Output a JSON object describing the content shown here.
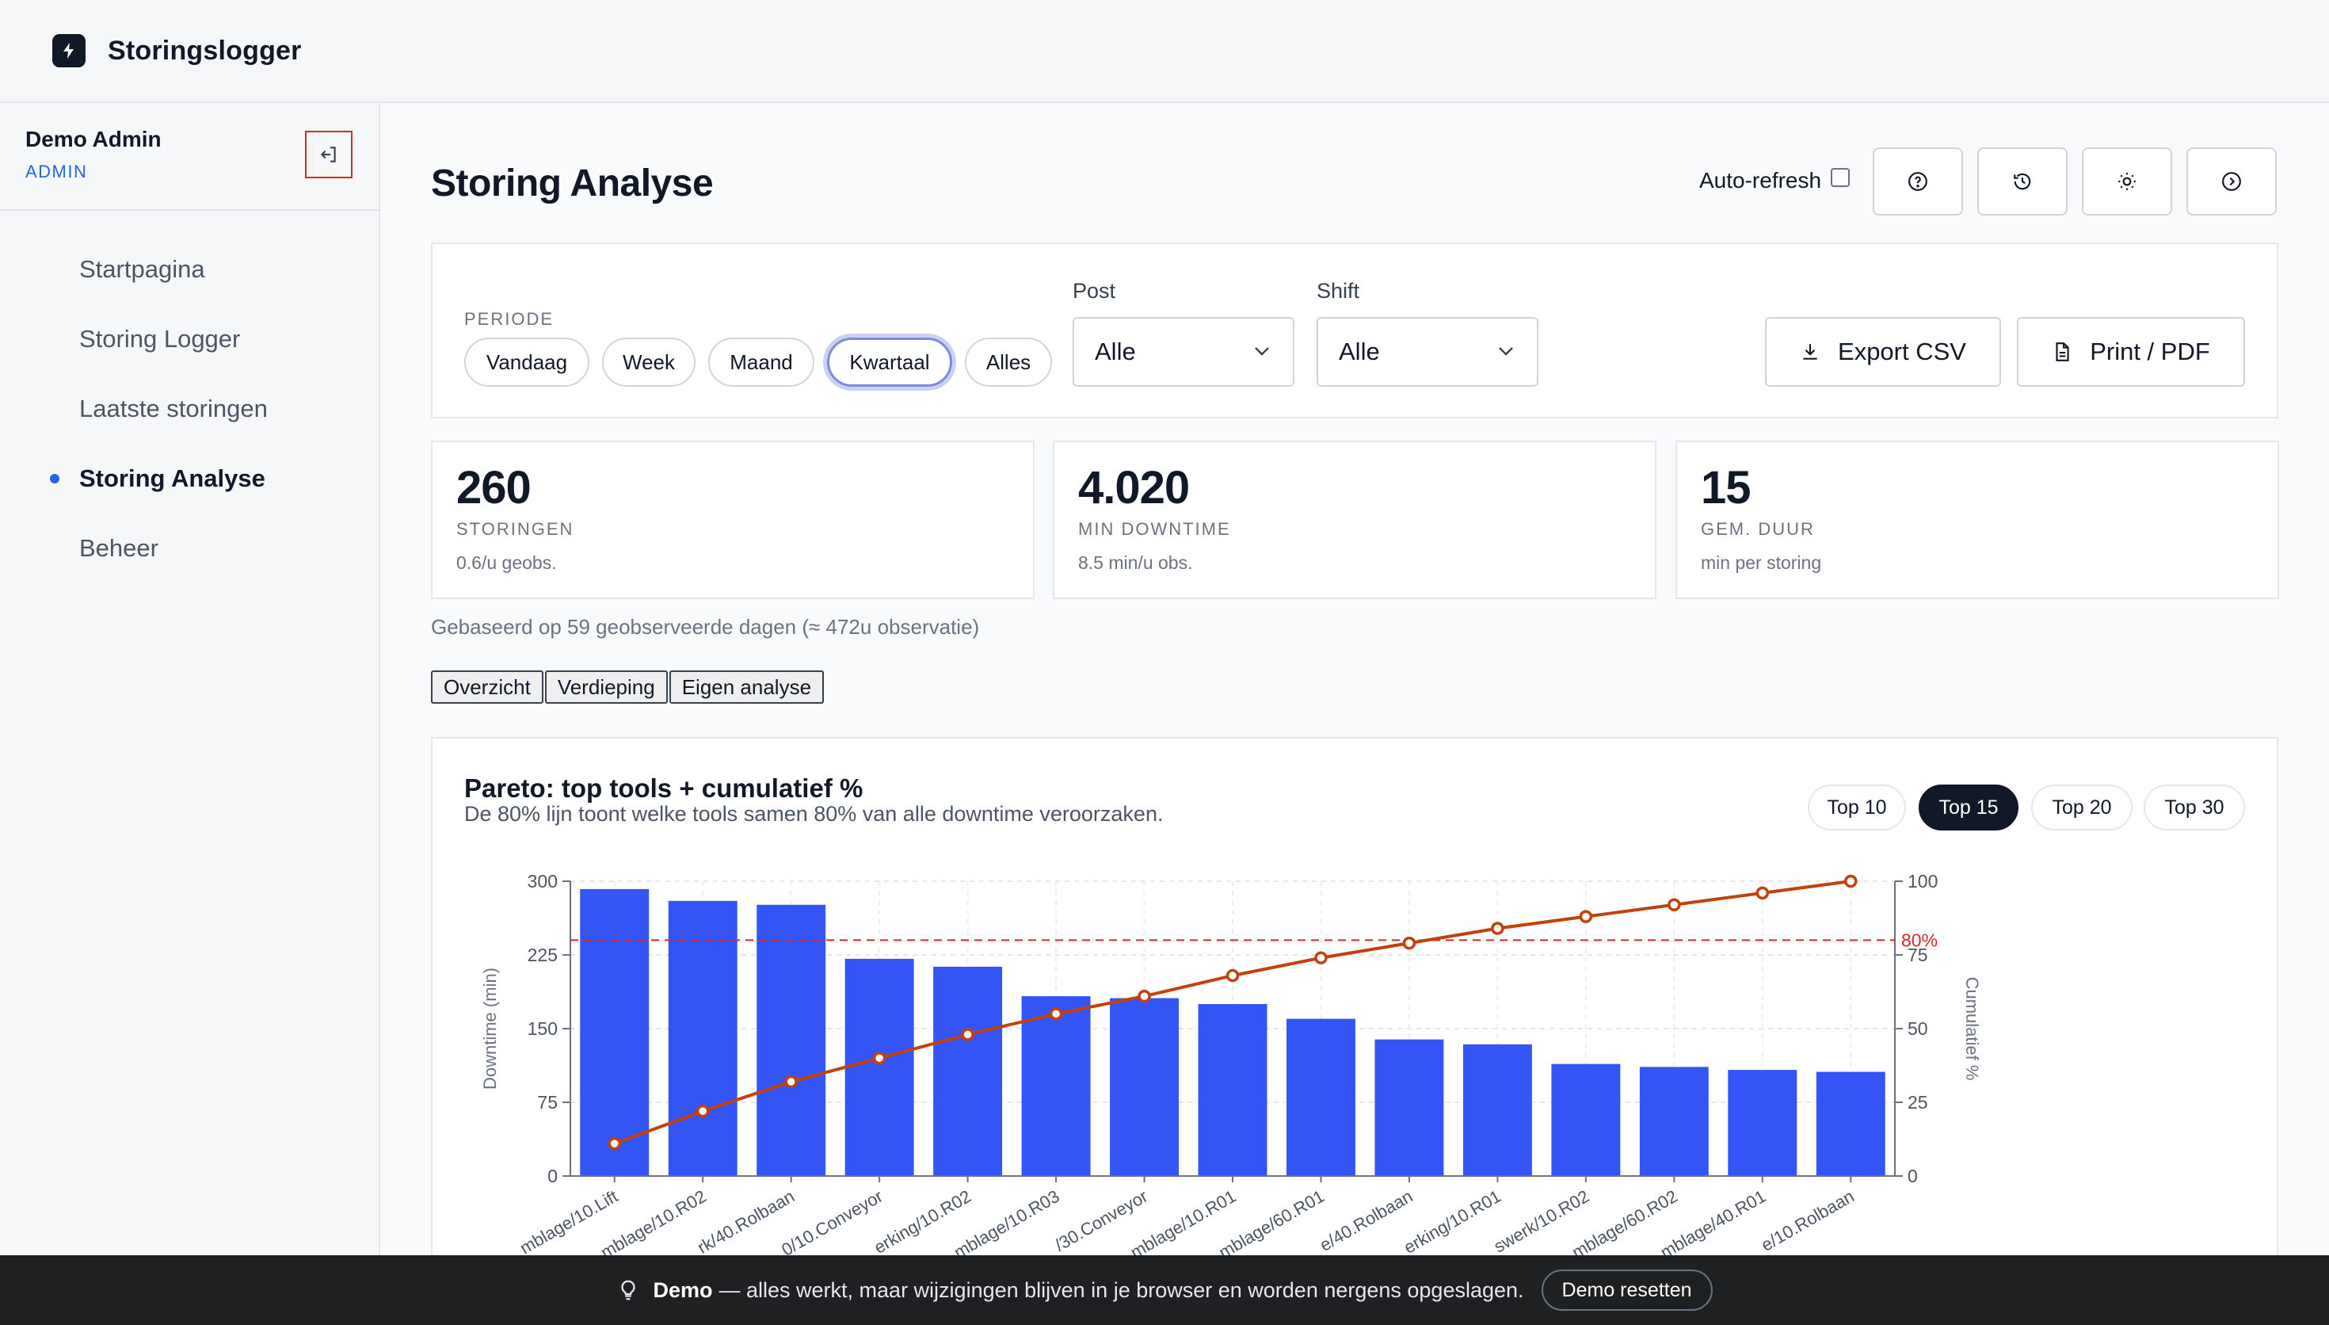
{
  "app": {
    "title": "Storingslogger"
  },
  "user": {
    "name": "Demo Admin",
    "role": "ADMIN"
  },
  "nav": [
    {
      "label": "Startpagina",
      "active": false
    },
    {
      "label": "Storing Logger",
      "active": false
    },
    {
      "label": "Laatste storingen",
      "active": false
    },
    {
      "label": "Storing Analyse",
      "active": true
    },
    {
      "label": "Beheer",
      "active": false
    }
  ],
  "page": {
    "title": "Storing Analyse",
    "autorefresh_label": "Auto-refresh",
    "autorefresh_checked": false
  },
  "header_icons": [
    "help-icon",
    "history-icon",
    "theme-sun-icon",
    "next-icon"
  ],
  "filters": {
    "periode_label": "PERIODE",
    "periods": [
      "Vandaag",
      "Week",
      "Maand",
      "Kwartaal",
      "Alles"
    ],
    "selected_period": "Kwartaal",
    "post": {
      "label": "Post",
      "value": "Alle"
    },
    "shift": {
      "label": "Shift",
      "value": "Alle"
    },
    "export_label": "Export CSV",
    "print_label": "Print / PDF"
  },
  "stats": [
    {
      "value": "260",
      "label": "STORINGEN",
      "sub": "0.6/u geobs."
    },
    {
      "value": "4.020",
      "label": "MIN DOWNTIME",
      "sub": "8.5 min/u obs."
    },
    {
      "value": "15",
      "label": "GEM. DUUR",
      "sub": "min per storing"
    }
  ],
  "basis_text": "Gebaseerd op 59 geobserveerde dagen (≈ 472u observatie)",
  "tabs": [
    "Overzicht",
    "Verdieping",
    "Eigen analyse"
  ],
  "chart": {
    "title": "Pareto: top tools + cumulatief %",
    "subtitle": "De 80% lijn toont welke tools samen 80% van alle downtime veroorzaken.",
    "top_options": [
      "Top 10",
      "Top 15",
      "Top 20",
      "Top 30"
    ],
    "top_selected": "Top 15"
  },
  "chart_data": {
    "type": "bar",
    "ylabel": "Downtime (min)",
    "y2label": "Cumulatief %",
    "ylim": [
      0,
      300
    ],
    "yticks": [
      0,
      75,
      150,
      225,
      300
    ],
    "y2lim": [
      0,
      100
    ],
    "y2ticks": [
      0,
      25,
      50,
      75,
      100
    ],
    "threshold": {
      "value": 80,
      "label": "80%"
    },
    "categories": [
      "mblage/10.Lift",
      "mblage/10.R02",
      "rk/40.Rolbaan",
      "0/10.Conveyor",
      "erking/10.R02",
      "mblage/10.R03",
      "/30.Conveyor",
      "mblage/10.R01",
      "mblage/60.R01",
      "e/40.Rolbaan",
      "erking/10.R01",
      "swerk/10.R02",
      "mblage/60.R02",
      "mblage/40.R01",
      "e/10.Rolbaan"
    ],
    "series": [
      {
        "values": [
          292,
          280,
          276,
          221,
          213,
          183,
          181,
          175,
          160,
          139,
          134,
          114,
          111,
          108,
          106
        ],
        "color": "#3355f5"
      },
      {
        "values": [
          11,
          22,
          32,
          40,
          48,
          55,
          61,
          68,
          74,
          79,
          84,
          88,
          92,
          96,
          100
        ],
        "color": "#c2410c"
      }
    ],
    "grid": true
  },
  "banner": {
    "bold": "Demo",
    "text": "— alles werkt, maar wijzigingen blijven in je browser en worden nergens opgeslagen.",
    "button": "Demo resetten"
  }
}
